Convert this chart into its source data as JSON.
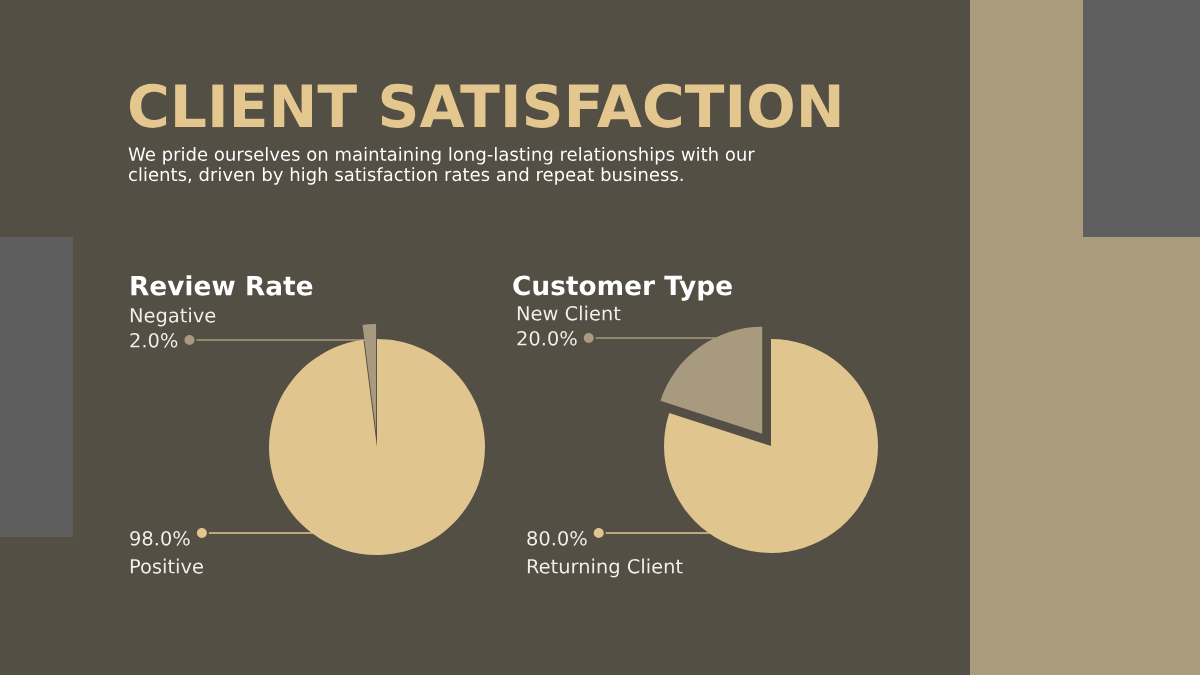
{
  "chart_data": [
    {
      "type": "other",
      "title": "CLIENT SATISFACTION",
      "subtitle": "We pride ourselves on maintaining long-lasting relationships with our clients, driven by high satisfaction rates and repeat business."
    },
    {
      "type": "pie",
      "title": "Review Rate",
      "categories": [
        "Negative",
        "Positive"
      ],
      "values": [
        2,
        98
      ],
      "colors": [
        "#a89a7e",
        "#e0c58f"
      ],
      "value_labels": [
        "2.0%",
        "98.0%"
      ]
    },
    {
      "type": "pie",
      "title": "Customer Type",
      "categories": [
        "New Client",
        "Returning Client"
      ],
      "values": [
        20,
        80
      ],
      "colors": [
        "#a89a7e",
        "#e0c58f"
      ],
      "value_labels": [
        "20.0%",
        "80.0%"
      ]
    }
  ]
}
